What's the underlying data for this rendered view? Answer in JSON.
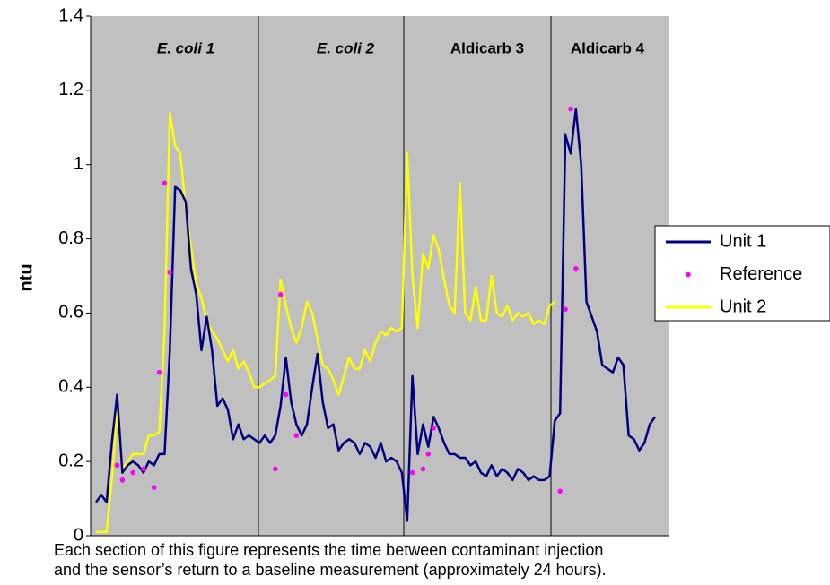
{
  "chart_data": {
    "type": "line",
    "ylabel": "ntu",
    "ylim": [
      0,
      1.4
    ],
    "yticks": [
      0,
      0.2,
      0.4,
      0.6,
      0.8,
      1,
      1.2,
      1.4
    ],
    "annotations": [
      "E. coli 1",
      "E. coli 2",
      "Aldicarb 3",
      "Aldicarb 4"
    ],
    "caption": [
      "Each section of this figure represents the time between contaminant injection",
      "and the sensor’s return to a baseline measurement (approximately 24 hours)."
    ],
    "legend": "right",
    "background": "#c0c0c0",
    "series": [
      {
        "name": "Unit 1",
        "color": "#000080",
        "mode": "line",
        "values": [
          0.09,
          0.11,
          0.09,
          0.25,
          0.38,
          0.17,
          0.19,
          0.2,
          0.19,
          0.17,
          0.2,
          0.19,
          0.22,
          0.22,
          0.5,
          0.94,
          0.93,
          0.9,
          0.72,
          0.65,
          0.5,
          0.59,
          0.5,
          0.35,
          0.37,
          0.34,
          0.26,
          0.3,
          0.26,
          0.27,
          0.26,
          0.25,
          0.27,
          0.25,
          0.27,
          0.35,
          0.48,
          0.36,
          0.3,
          0.27,
          0.3,
          0.4,
          0.49,
          0.36,
          0.29,
          0.3,
          0.23,
          0.25,
          0.26,
          0.25,
          0.22,
          0.25,
          0.24,
          0.21,
          0.25,
          0.2,
          0.21,
          0.2,
          0.17,
          0.04,
          0.43,
          0.22,
          0.3,
          0.24,
          0.32,
          0.29,
          0.25,
          0.22,
          0.22,
          0.21,
          0.21,
          0.19,
          0.2,
          0.17,
          0.16,
          0.19,
          0.16,
          0.18,
          0.17,
          0.15,
          0.18,
          0.17,
          0.15,
          0.16,
          0.15,
          0.15,
          0.16,
          0.31,
          0.33,
          1.08,
          1.03,
          1.15,
          1.0,
          0.63,
          0.59,
          0.55,
          0.46,
          0.45,
          0.44,
          0.48,
          0.46,
          0.27,
          0.26,
          0.23,
          0.25,
          0.3,
          0.32
        ]
      },
      {
        "name": "Reference",
        "color": "#ff00ff",
        "mode": "markers",
        "values": [
          null,
          null,
          null,
          null,
          0.19,
          0.15,
          null,
          0.17,
          null,
          0.18,
          null,
          0.13,
          0.44,
          0.95,
          0.71,
          null,
          null,
          null,
          null,
          null,
          null,
          null,
          null,
          null,
          null,
          null,
          null,
          null,
          null,
          null,
          null,
          null,
          null,
          null,
          0.18,
          0.65,
          0.38,
          null,
          0.27,
          null,
          null,
          null,
          null,
          null,
          null,
          null,
          null,
          null,
          null,
          null,
          null,
          null,
          null,
          null,
          null,
          null,
          null,
          null,
          null,
          null,
          0.17,
          null,
          0.18,
          0.22,
          0.29,
          null,
          null,
          null,
          null,
          null,
          null,
          null,
          null,
          null,
          null,
          null,
          null,
          null,
          null,
          null,
          null,
          null,
          null,
          null,
          null,
          null,
          null,
          null,
          0.12,
          0.61,
          1.15,
          0.72,
          null,
          null,
          null,
          null,
          null,
          null,
          null,
          null,
          null,
          null,
          null,
          null,
          null,
          null,
          null
        ]
      },
      {
        "name": "Unit 2",
        "color": "#ffff00",
        "mode": "line",
        "values": [
          0.01,
          0.01,
          0.01,
          0.15,
          0.33,
          0.18,
          0.2,
          0.22,
          0.22,
          0.22,
          0.27,
          0.27,
          0.28,
          0.55,
          1.14,
          1.05,
          1.03,
          0.88,
          0.78,
          0.68,
          0.64,
          0.58,
          0.55,
          0.53,
          0.5,
          0.47,
          0.5,
          0.45,
          0.47,
          0.44,
          0.4,
          0.4,
          0.41,
          0.42,
          0.43,
          0.69,
          0.62,
          0.56,
          0.52,
          0.56,
          0.63,
          0.6,
          0.53,
          0.46,
          0.45,
          0.42,
          0.38,
          0.43,
          0.48,
          0.45,
          0.45,
          0.5,
          0.47,
          0.52,
          0.55,
          0.54,
          0.56,
          0.55,
          0.56,
          1.03,
          0.7,
          0.56,
          0.76,
          0.72,
          0.81,
          0.77,
          0.69,
          0.62,
          0.6,
          0.95,
          0.6,
          0.58,
          0.67,
          0.58,
          0.58,
          0.7,
          0.6,
          0.59,
          0.62,
          0.58,
          0.6,
          0.59,
          0.6,
          0.57,
          0.58,
          0.57,
          0.62,
          0.63,
          null,
          null,
          null,
          null,
          null,
          null,
          null,
          null,
          null,
          null,
          null,
          null,
          null,
          null,
          null,
          null,
          null,
          null,
          null
        ]
      }
    ]
  }
}
